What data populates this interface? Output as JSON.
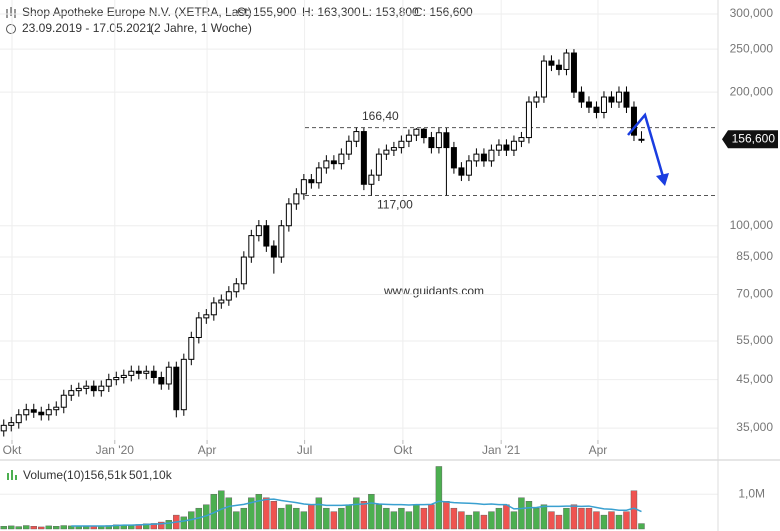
{
  "chart_data": {
    "type": "candlestick",
    "title": "Shop Apotheke Europe N.V. (XETRA, Last)",
    "ohlc_texts": [
      "O: 155,900",
      "H: 163,300",
      "L: 153,800",
      "C: 156,600"
    ],
    "subtitle": "23.09.2019 - 17.05.2021",
    "period": "(2 Jahre, 1 Woche)",
    "watermark": "www.guidants.com",
    "log_scale": true,
    "grid": true,
    "up_color": "#ffffff",
    "down_color": "#000000",
    "line_color": "#000000",
    "xlim": [
      -0.5,
      95.2
    ],
    "xticks": [
      {
        "value": 1.1,
        "label": "Okt"
      },
      {
        "value": 14.8,
        "label": "Jan '20"
      },
      {
        "value": 27.1,
        "label": "Apr"
      },
      {
        "value": 40.1,
        "label": "Jul"
      },
      {
        "value": 53.2,
        "label": "Okt"
      },
      {
        "value": 66.3,
        "label": "Jan '21"
      },
      {
        "value": 79.2,
        "label": "Apr"
      }
    ],
    "ylim": [
      32900,
      322600
    ],
    "yticks": [
      {
        "value": 300000,
        "label": "300,000"
      },
      {
        "value": 250000,
        "label": "250,000"
      },
      {
        "value": 200000,
        "label": "200,000"
      },
      {
        "value": 100000,
        "label": "100,000"
      },
      {
        "value": 85000,
        "label": "85,000"
      },
      {
        "value": 70000,
        "label": "70,000"
      },
      {
        "value": 55000,
        "label": "55,000"
      },
      {
        "value": 45000,
        "label": "45,000"
      },
      {
        "value": 35000,
        "label": "35,000"
      }
    ],
    "levels": [
      {
        "value": 166400,
        "label": "166,40"
      },
      {
        "value": 117000,
        "label": "117,00"
      }
    ],
    "last_price": {
      "value": 156600,
      "label": "156,600"
    },
    "series": [
      {
        "open": [
          34500,
          35500,
          36000,
          37500,
          38500,
          38000,
          37500,
          38500,
          39000,
          41500,
          42500,
          43000,
          43500,
          42500,
          43500,
          45000,
          45500,
          46000,
          47000,
          46500,
          47000,
          45500,
          44000,
          48000,
          38500,
          50000,
          56000,
          62000,
          63000,
          67000,
          68000,
          71000,
          74000,
          85000,
          95000,
          100000,
          90000,
          85000,
          100000,
          112000,
          118000,
          127000,
          125000,
          135000,
          140000,
          138000,
          145000,
          155000,
          163000,
          124000,
          130000,
          145000,
          148000,
          150000,
          155000,
          160000,
          165000,
          158000,
          150000,
          162000,
          150000,
          135000,
          130000,
          140000,
          145000,
          140000,
          148000,
          152000,
          148000,
          155000,
          158000,
          190000,
          195000,
          235000,
          230000,
          225000,
          245000,
          200000,
          190000,
          185000,
          180000,
          195000,
          190000,
          200000,
          185000,
          155900
        ],
        "high": [
          36600,
          37100,
          38600,
          39700,
          39700,
          39100,
          39700,
          40200,
          42700,
          43800,
          44300,
          44800,
          44800,
          44800,
          46400,
          46900,
          47400,
          48400,
          48400,
          48400,
          48400,
          46900,
          49400,
          49400,
          51500,
          57700,
          63900,
          64900,
          69000,
          70000,
          73100,
          76200,
          87600,
          97900,
          103000,
          103000,
          92700,
          103000,
          115400,
          121500,
          130800,
          130800,
          139100,
          144200,
          144200,
          149400,
          159700,
          166400,
          166000,
          133900,
          149400,
          152400,
          154500,
          159700,
          164800,
          166000,
          166000,
          162700,
          166000,
          166000,
          154500,
          139100,
          144200,
          149400,
          149400,
          152400,
          156600,
          156600,
          159700,
          162700,
          195700,
          200900,
          242100,
          242100,
          236900,
          250000,
          250000,
          206000,
          195700,
          190600,
          200900,
          200900,
          206000,
          206000,
          190600,
          163300
        ],
        "low": [
          33500,
          34400,
          34900,
          36400,
          36900,
          36400,
          36400,
          37300,
          37800,
          40300,
          41200,
          41700,
          41200,
          41200,
          42200,
          43700,
          44100,
          44600,
          45100,
          45100,
          44100,
          42700,
          42700,
          37000,
          37300,
          48500,
          54300,
          60100,
          61100,
          65000,
          66000,
          68900,
          71800,
          82500,
          92200,
          87300,
          78000,
          82500,
          97000,
          108600,
          114500,
          121200,
          121200,
          131000,
          133900,
          133900,
          140700,
          150400,
          120300,
          117000,
          126100,
          140700,
          143600,
          145500,
          150400,
          155200,
          153300,
          145500,
          145500,
          117000,
          131000,
          126100,
          126100,
          135800,
          135800,
          135800,
          143600,
          143600,
          143600,
          150400,
          153300,
          184300,
          189200,
          223100,
          218300,
          218300,
          194000,
          184300,
          179500,
          174600,
          174600,
          184300,
          184300,
          179500,
          155200,
          153800
        ],
        "close": [
          35500,
          36000,
          37500,
          38500,
          38000,
          37500,
          38500,
          39000,
          41500,
          42500,
          43000,
          43500,
          42500,
          43500,
          45000,
          45500,
          46000,
          47000,
          46500,
          47000,
          45500,
          44000,
          48000,
          38500,
          50000,
          56000,
          62000,
          63000,
          67000,
          68000,
          71000,
          74000,
          85000,
          95000,
          100000,
          90000,
          85000,
          100000,
          112000,
          118000,
          127000,
          125000,
          135000,
          140000,
          138000,
          145000,
          155000,
          163000,
          124000,
          130000,
          145000,
          148000,
          150000,
          155000,
          160000,
          165000,
          158000,
          150000,
          162000,
          150000,
          135000,
          130000,
          140000,
          145000,
          140000,
          148000,
          152000,
          148000,
          155000,
          158000,
          190000,
          195000,
          235000,
          230000,
          225000,
          245000,
          200000,
          190000,
          185000,
          180000,
          195000,
          190000,
          200000,
          185000,
          160000,
          156600
        ]
      }
    ],
    "volume": {
      "legend": "Volume(10)",
      "current_label": "156,51k",
      "average_label": "501,10k",
      "up_color": "#4caf50",
      "down_color": "#ef5350",
      "average_color": "#3aa0d0",
      "ylim": [
        0,
        1900000
      ],
      "yticks": [
        {
          "value": 1000000,
          "label": "1,0M"
        }
      ],
      "values": [
        80000,
        90000,
        70000,
        100000,
        80000,
        60000,
        90000,
        80000,
        100000,
        90000,
        80000,
        70000,
        90000,
        80000,
        100000,
        120000,
        110000,
        100000,
        130000,
        150000,
        160000,
        200000,
        250000,
        400000,
        350000,
        500000,
        600000,
        700000,
        1000000,
        1100000,
        900000,
        500000,
        600000,
        900000,
        1000000,
        900000,
        800000,
        600000,
        700000,
        600000,
        500000,
        700000,
        900000,
        600000,
        500000,
        600000,
        700000,
        900000,
        800000,
        1000000,
        700000,
        600000,
        500000,
        600000,
        500000,
        700000,
        600000,
        700000,
        1800000,
        800000,
        600000,
        500000,
        400000,
        500000,
        400000,
        500000,
        600000,
        700000,
        500000,
        900000,
        800000,
        600000,
        700000,
        500000,
        400000,
        600000,
        700000,
        600000,
        600000,
        500000,
        400000,
        500000,
        400000,
        500000,
        1100000,
        156510
      ],
      "average": [
        null,
        null,
        null,
        null,
        null,
        null,
        null,
        null,
        null,
        85000,
        85000,
        85000,
        85000,
        85000,
        85000,
        100000,
        110000,
        110000,
        120000,
        130000,
        140000,
        150000,
        170000,
        200000,
        230000,
        270000,
        320000,
        380000,
        470000,
        570000,
        650000,
        680000,
        710000,
        760000,
        810000,
        850000,
        860000,
        820000,
        790000,
        760000,
        720000,
        700000,
        710000,
        680000,
        680000,
        680000,
        690000,
        710000,
        720000,
        750000,
        720000,
        710000,
        700000,
        700000,
        690000,
        700000,
        700000,
        710000,
        800000,
        780000,
        760000,
        750000,
        740000,
        730000,
        710000,
        720000,
        700000,
        700000,
        580000,
        590000,
        610000,
        620000,
        650000,
        650000,
        650000,
        660000,
        660000,
        650000,
        660000,
        620000,
        580000,
        570000,
        540000,
        540000,
        600000,
        501100
      ]
    }
  }
}
